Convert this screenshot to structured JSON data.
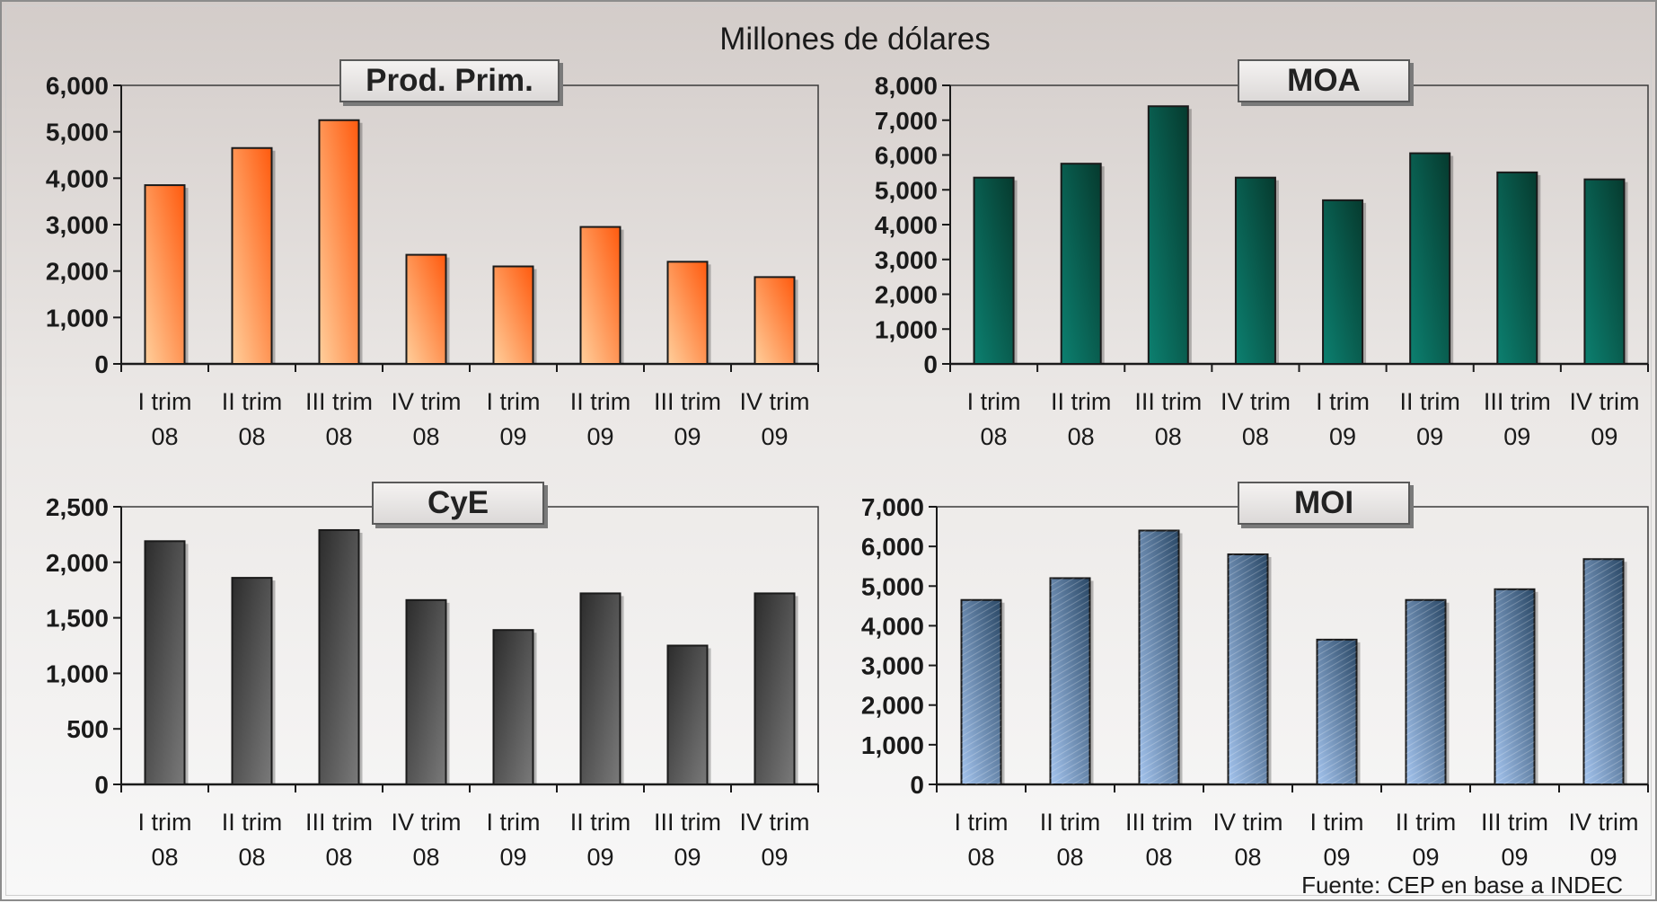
{
  "header": {
    "title": "Millones de dólares"
  },
  "footer": {
    "source": "Fuente: CEP en base a INDEC"
  },
  "colors": {
    "prod_prim": [
      "#ffcf9c",
      "#ff5a0e"
    ],
    "moa": [
      "#0c8070",
      "#063a2e"
    ],
    "cye": [
      "#7a7a7a",
      "#2c2c2c"
    ],
    "moi": [
      "#a4c4ee",
      "#2a4866"
    ]
  },
  "chart_data": [
    {
      "type": "bar",
      "title": "Prod. Prim.",
      "categories": [
        [
          "I trim",
          "08"
        ],
        [
          "II trim",
          "08"
        ],
        [
          "III trim",
          "08"
        ],
        [
          "IV trim",
          "08"
        ],
        [
          "I trim",
          "09"
        ],
        [
          "II trim",
          "09"
        ],
        [
          "III trim",
          "09"
        ],
        [
          "IV trim",
          "09"
        ]
      ],
      "values": [
        3850,
        4650,
        5250,
        2350,
        2100,
        2950,
        2200,
        1870
      ],
      "ylim": [
        0,
        6000
      ],
      "yticks": [
        0,
        1000,
        2000,
        3000,
        4000,
        5000,
        6000
      ],
      "ytick_labels": [
        "0",
        "1,000",
        "2,000",
        "3,000",
        "4,000",
        "5,000",
        "6,000"
      ],
      "grid": false
    },
    {
      "type": "bar",
      "title": "MOA",
      "categories": [
        [
          "I trim",
          "08"
        ],
        [
          "II trim",
          "08"
        ],
        [
          "III trim",
          "08"
        ],
        [
          "IV trim",
          "08"
        ],
        [
          "I trim",
          "09"
        ],
        [
          "II trim",
          "09"
        ],
        [
          "III trim",
          "09"
        ],
        [
          "IV trim",
          "09"
        ]
      ],
      "values": [
        5350,
        5750,
        7400,
        5350,
        4700,
        6050,
        5500,
        5300
      ],
      "ylim": [
        0,
        8000
      ],
      "yticks": [
        0,
        1000,
        2000,
        3000,
        4000,
        5000,
        6000,
        7000,
        8000
      ],
      "ytick_labels": [
        "0",
        "1,000",
        "2,000",
        "3,000",
        "4,000",
        "5,000",
        "6,000",
        "7,000",
        "8,000"
      ],
      "grid": false
    },
    {
      "type": "bar",
      "title": "CyE",
      "categories": [
        [
          "I trim",
          "08"
        ],
        [
          "II trim",
          "08"
        ],
        [
          "III trim",
          "08"
        ],
        [
          "IV trim",
          "08"
        ],
        [
          "I trim",
          "09"
        ],
        [
          "II trim",
          "09"
        ],
        [
          "III trim",
          "09"
        ],
        [
          "IV trim",
          "09"
        ]
      ],
      "values": [
        2190,
        1860,
        2290,
        1660,
        1390,
        1720,
        1250,
        1720
      ],
      "ylim": [
        0,
        2500
      ],
      "yticks": [
        0,
        500,
        1000,
        1500,
        2000,
        2500
      ],
      "ytick_labels": [
        "0",
        "500",
        "1,000",
        "1,500",
        "2,000",
        "2,500"
      ],
      "grid": false
    },
    {
      "type": "bar",
      "title": "MOI",
      "categories": [
        [
          "I trim",
          "08"
        ],
        [
          "II trim",
          "08"
        ],
        [
          "III trim",
          "08"
        ],
        [
          "IV trim",
          "08"
        ],
        [
          "I trim",
          "09"
        ],
        [
          "II trim",
          "09"
        ],
        [
          "III trim",
          "09"
        ],
        [
          "IV trim",
          "09"
        ]
      ],
      "values": [
        4650,
        5200,
        6400,
        5800,
        3650,
        4650,
        4920,
        5680
      ],
      "ylim": [
        0,
        7000
      ],
      "yticks": [
        0,
        1000,
        2000,
        3000,
        4000,
        5000,
        6000,
        7000
      ],
      "ytick_labels": [
        "0",
        "1,000",
        "2,000",
        "3,000",
        "4,000",
        "5,000",
        "6,000",
        "7,000"
      ],
      "grid": false
    }
  ]
}
